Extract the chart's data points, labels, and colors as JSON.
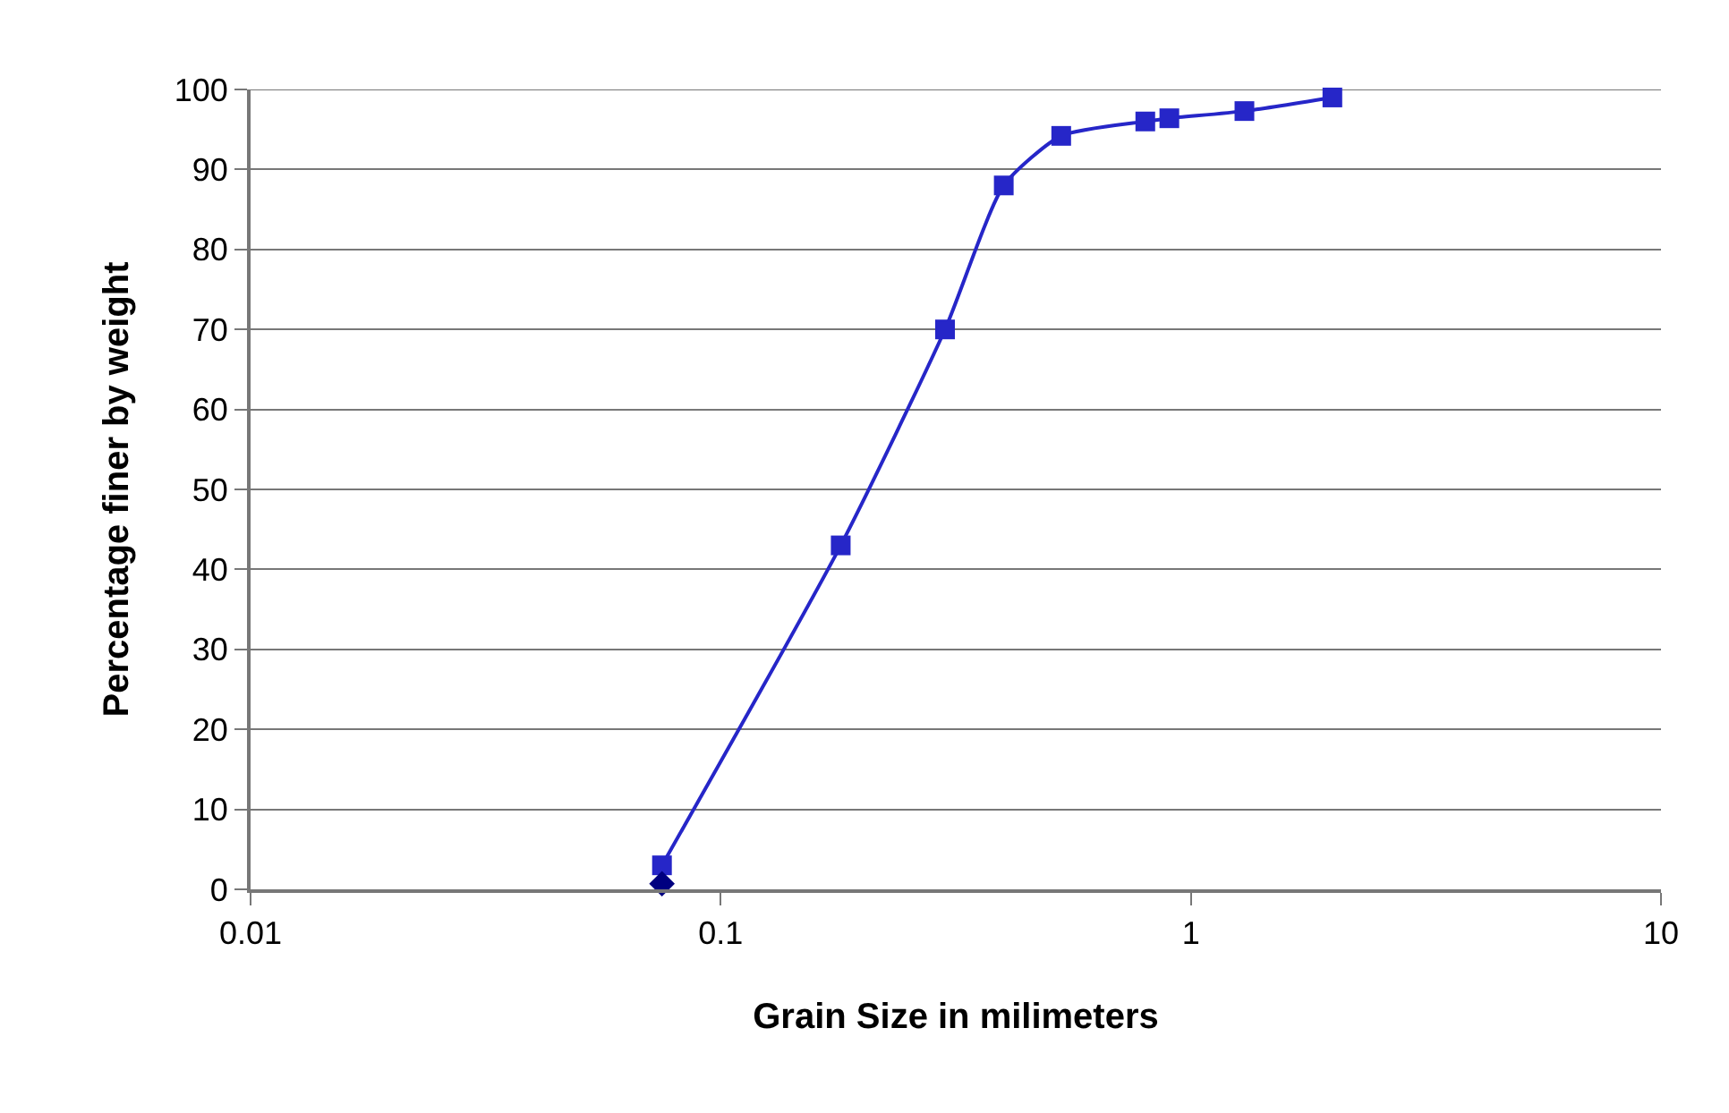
{
  "chart_data": {
    "type": "scatter",
    "xlabel": "Grain Size in milimeters",
    "ylabel": "Percentage finer by weight",
    "log": "x",
    "grid": "y",
    "line_style": "solid",
    "xlim": [
      0.01,
      10
    ],
    "xticks": [
      0.01,
      0.1,
      1,
      10
    ],
    "ylim": [
      0,
      100
    ],
    "yticks": [
      0,
      10,
      20,
      30,
      40,
      50,
      60,
      70,
      80,
      90,
      100
    ],
    "series": [
      {
        "type": "line",
        "marker": "square",
        "color": "#2626c8",
        "x": [
          0.075,
          0.18,
          0.3,
          0.4,
          0.53,
          0.8,
          0.9,
          1.3,
          2
        ],
        "values": [
          3,
          43,
          70,
          88,
          94.2,
          96,
          96.4,
          97.3,
          99
        ]
      },
      {
        "type": "scatter",
        "marker": "diamond",
        "color": "#000080",
        "x": [
          0.075
        ],
        "values": [
          0.7
        ]
      }
    ]
  }
}
